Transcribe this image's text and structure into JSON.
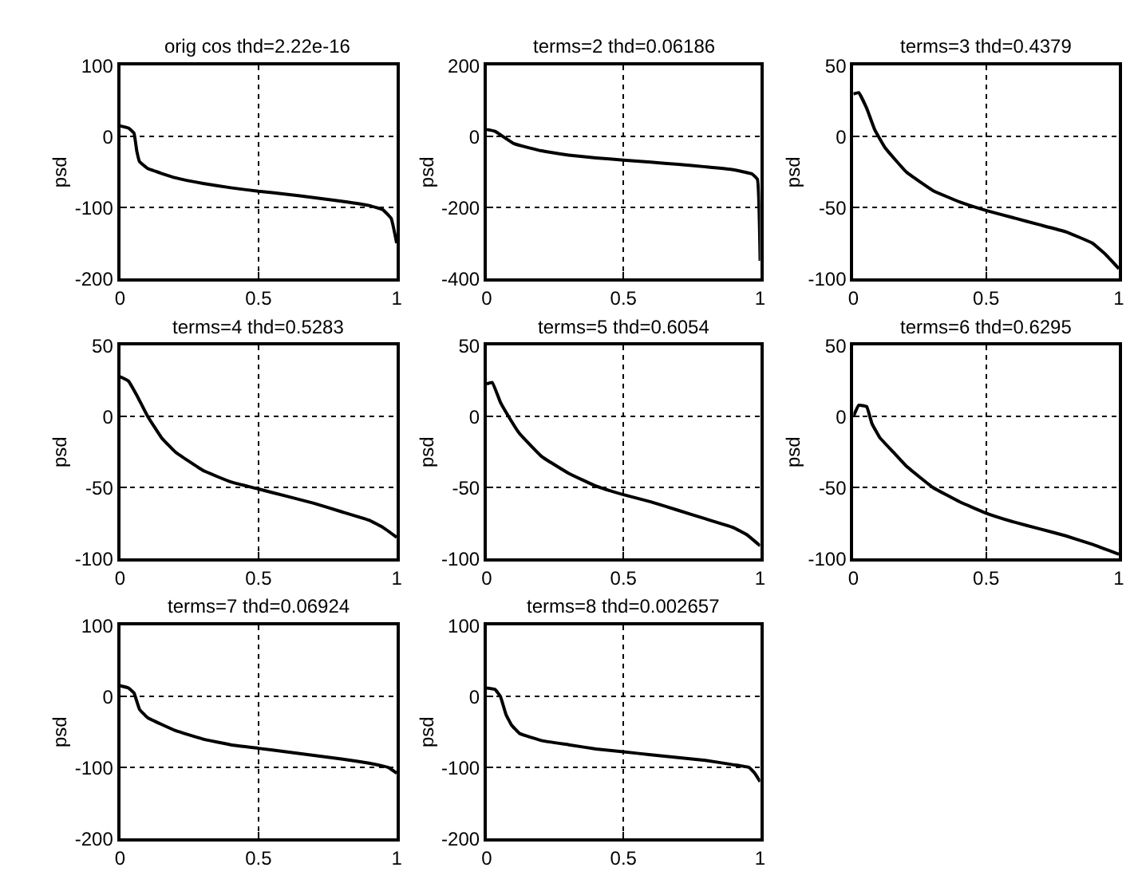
{
  "chart_data": [
    {
      "type": "line",
      "title": "orig cos thd=2.22e-16",
      "ylabel": "psd",
      "grid": true,
      "xlim": [
        0,
        1
      ],
      "xticks": [
        0,
        0.5,
        1
      ],
      "ylim": [
        -200,
        100
      ],
      "yticks": [
        -200,
        -100,
        0,
        100
      ],
      "series": [
        {
          "color": "#000000",
          "x": [
            0,
            0.03,
            0.05,
            0.06,
            0.07,
            0.1,
            0.2,
            0.3,
            0.4,
            0.5,
            0.6,
            0.7,
            0.8,
            0.9,
            0.95,
            0.98,
            1
          ],
          "values": [
            15,
            12,
            5,
            -20,
            -35,
            -45,
            -58,
            -66,
            -72,
            -77,
            -81,
            -86,
            -91,
            -97,
            -103,
            -115,
            -150
          ]
        }
      ]
    },
    {
      "type": "line",
      "title": "terms=2 thd=0.06186",
      "ylabel": "psd",
      "grid": true,
      "xlim": [
        0,
        1
      ],
      "xticks": [
        0,
        0.5,
        1
      ],
      "ylim": [
        -400,
        200
      ],
      "yticks": [
        -400,
        -200,
        0,
        200
      ],
      "series": [
        {
          "color": "#000000",
          "x": [
            0,
            0.03,
            0.1,
            0.2,
            0.3,
            0.4,
            0.5,
            0.6,
            0.7,
            0.8,
            0.9,
            0.97,
            0.99,
            1
          ],
          "values": [
            20,
            15,
            -20,
            -40,
            -52,
            -60,
            -66,
            -72,
            -78,
            -85,
            -93,
            -105,
            -120,
            -350
          ]
        }
      ]
    },
    {
      "type": "line",
      "title": "terms=3 thd=0.4379",
      "ylabel": "psd",
      "grid": true,
      "xlim": [
        0,
        1
      ],
      "xticks": [
        0,
        0.5,
        1
      ],
      "ylim": [
        -100,
        50
      ],
      "yticks": [
        -100,
        -50,
        0,
        50
      ],
      "series": [
        {
          "color": "#000000",
          "x": [
            0,
            0.02,
            0.05,
            0.08,
            0.12,
            0.2,
            0.3,
            0.4,
            0.5,
            0.6,
            0.7,
            0.8,
            0.9,
            0.95,
            1
          ],
          "values": [
            30,
            31,
            20,
            5,
            -8,
            -25,
            -38,
            -46,
            -52,
            -57,
            -62,
            -67,
            -75,
            -83,
            -93
          ]
        }
      ]
    },
    {
      "type": "line",
      "title": "terms=4 thd=0.5283",
      "ylabel": "psd",
      "grid": true,
      "xlim": [
        0,
        1
      ],
      "xticks": [
        0,
        0.5,
        1
      ],
      "ylim": [
        -100,
        50
      ],
      "yticks": [
        -100,
        -50,
        0,
        50
      ],
      "series": [
        {
          "color": "#000000",
          "x": [
            0,
            0.03,
            0.06,
            0.1,
            0.15,
            0.2,
            0.3,
            0.4,
            0.5,
            0.6,
            0.7,
            0.8,
            0.9,
            0.95,
            1
          ],
          "values": [
            28,
            25,
            15,
            0,
            -15,
            -25,
            -38,
            -46,
            -51,
            -56,
            -61,
            -67,
            -73,
            -78,
            -85
          ]
        }
      ]
    },
    {
      "type": "line",
      "title": "terms=5 thd=0.6054",
      "ylabel": "psd",
      "grid": true,
      "xlim": [
        0,
        1
      ],
      "xticks": [
        0,
        0.5,
        1
      ],
      "ylim": [
        -100,
        50
      ],
      "yticks": [
        -100,
        -50,
        0,
        50
      ],
      "series": [
        {
          "color": "#000000",
          "x": [
            0,
            0.02,
            0.05,
            0.08,
            0.12,
            0.2,
            0.3,
            0.4,
            0.5,
            0.6,
            0.7,
            0.8,
            0.9,
            0.95,
            1
          ],
          "values": [
            23,
            24,
            10,
            0,
            -12,
            -28,
            -40,
            -49,
            -55,
            -60,
            -66,
            -72,
            -78,
            -83,
            -91
          ]
        }
      ]
    },
    {
      "type": "line",
      "title": "terms=6 thd=0.6295",
      "ylabel": "psd",
      "grid": true,
      "xlim": [
        0,
        1
      ],
      "xticks": [
        0,
        0.5,
        1
      ],
      "ylim": [
        -100,
        50
      ],
      "yticks": [
        -100,
        -50,
        0,
        50
      ],
      "series": [
        {
          "color": "#000000",
          "x": [
            0,
            0.02,
            0.05,
            0.07,
            0.1,
            0.15,
            0.2,
            0.3,
            0.4,
            0.5,
            0.6,
            0.7,
            0.8,
            0.9,
            1
          ],
          "values": [
            0,
            8,
            7,
            -5,
            -15,
            -25,
            -35,
            -50,
            -60,
            -68,
            -74,
            -79,
            -84,
            -90,
            -97
          ]
        }
      ]
    },
    {
      "type": "line",
      "title": "terms=7 thd=0.06924",
      "ylabel": "psd",
      "grid": true,
      "xlim": [
        0,
        1
      ],
      "xticks": [
        0,
        0.5,
        1
      ],
      "ylim": [
        -200,
        100
      ],
      "yticks": [
        -200,
        -100,
        0,
        100
      ],
      "series": [
        {
          "color": "#000000",
          "x": [
            0,
            0.03,
            0.05,
            0.07,
            0.1,
            0.2,
            0.3,
            0.4,
            0.5,
            0.6,
            0.7,
            0.8,
            0.9,
            0.95,
            0.97,
            1
          ],
          "values": [
            15,
            12,
            5,
            -18,
            -30,
            -48,
            -60,
            -68,
            -73,
            -78,
            -83,
            -88,
            -94,
            -98,
            -100,
            -108
          ]
        }
      ]
    },
    {
      "type": "line",
      "title": "terms=8 thd=0.002657",
      "ylabel": "psd",
      "grid": true,
      "xlim": [
        0,
        1
      ],
      "xticks": [
        0,
        0.5,
        1
      ],
      "ylim": [
        -200,
        100
      ],
      "yticks": [
        -200,
        -100,
        0,
        100
      ],
      "series": [
        {
          "color": "#000000",
          "x": [
            0,
            0.03,
            0.05,
            0.07,
            0.09,
            0.12,
            0.2,
            0.3,
            0.4,
            0.5,
            0.6,
            0.7,
            0.8,
            0.9,
            0.96,
            0.98,
            1
          ],
          "values": [
            12,
            10,
            0,
            -25,
            -40,
            -52,
            -62,
            -68,
            -74,
            -78,
            -82,
            -86,
            -90,
            -96,
            -100,
            -108,
            -120
          ]
        }
      ]
    }
  ]
}
